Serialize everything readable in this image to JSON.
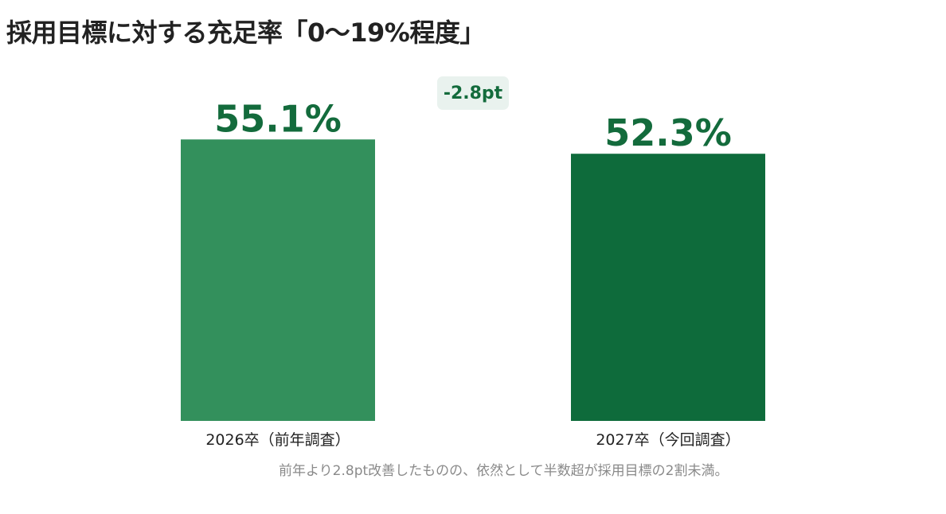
{
  "chart_data": {
    "type": "bar",
    "title": "採用目標に対する充足率「0〜19%程度」",
    "categories": [
      "2026卒（前年調査）",
      "2027卒（今回調査）"
    ],
    "values": [
      55.1,
      52.3
    ],
    "value_labels": [
      "55.1%",
      "52.3%"
    ],
    "ylim": [
      0,
      100
    ],
    "grid": false,
    "colors": [
      "#33905c",
      "#0e6b3b"
    ],
    "label_color": "#136b3c",
    "annotation": "-2.8pt",
    "footnote": "前年より2.8pt改善したものの、依然として半数超が採用目標の2割未満。"
  }
}
